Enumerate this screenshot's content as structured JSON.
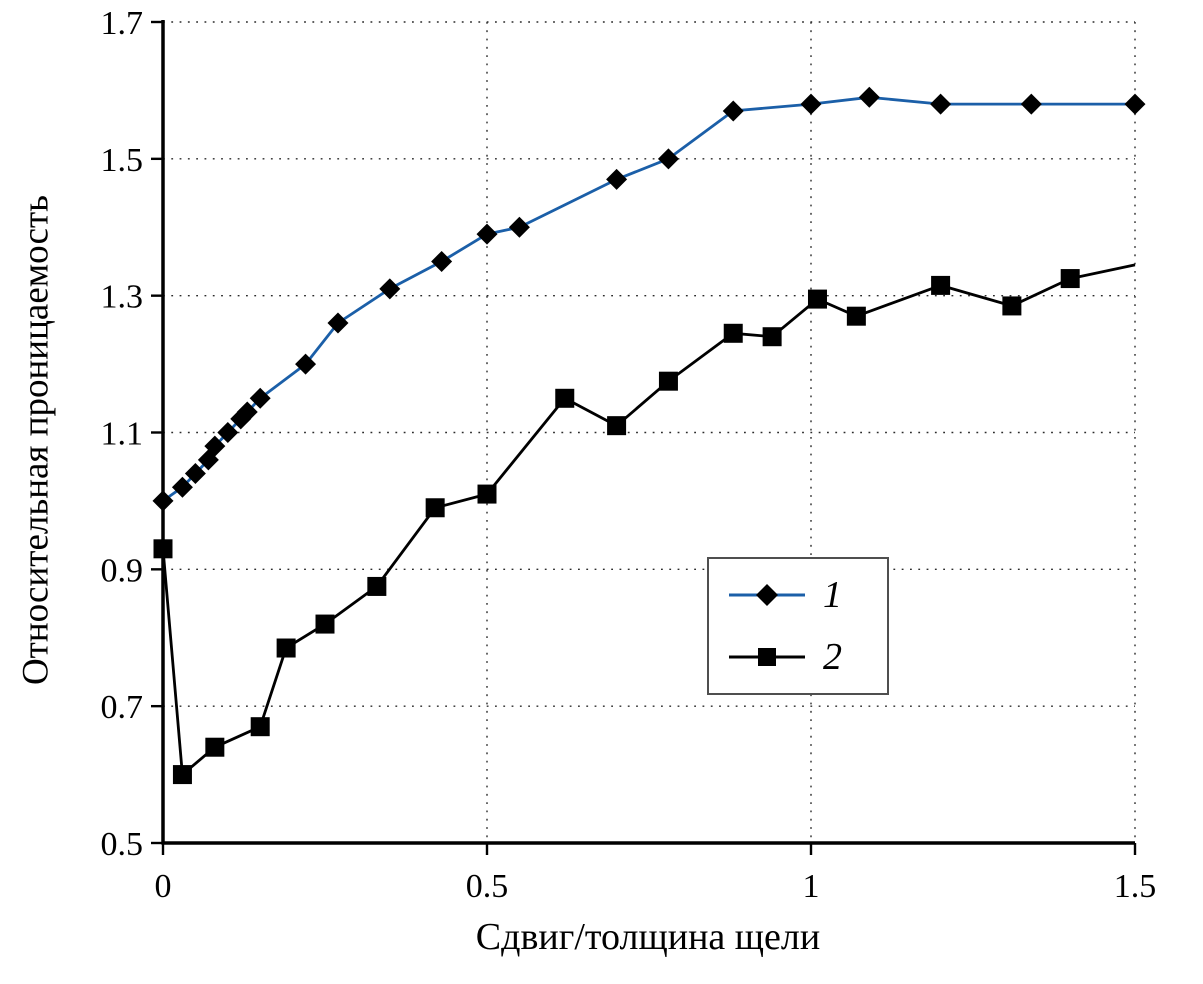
{
  "chart_data": {
    "type": "line",
    "title": "",
    "xlabel": "Сдвиг/толщина щели",
    "ylabel": "Относительная проницаемость",
    "xlim": [
      0,
      1.5
    ],
    "ylim": [
      0.5,
      1.7
    ],
    "xticks": [
      0,
      0.5,
      1,
      1.5
    ],
    "xtick_labels": [
      "0",
      "0.5",
      "1",
      "1.5"
    ],
    "yticks": [
      0.5,
      0.7,
      0.9,
      1.1,
      1.3,
      1.5,
      1.7
    ],
    "ytick_labels": [
      "0.5",
      "0.7",
      "0.9",
      "1.1",
      "1.3",
      "1.5",
      "1.7"
    ],
    "grid": "dotted",
    "legend_position": "inside-center-right",
    "series": [
      {
        "name": "series-1",
        "label": "1",
        "color": "#1b5fa8",
        "marker": "diamond",
        "marker_color": "#000000",
        "x": [
          0,
          0.03,
          0.05,
          0.07,
          0.08,
          0.1,
          0.12,
          0.13,
          0.15,
          0.22,
          0.27,
          0.35,
          0.43,
          0.5,
          0.55,
          0.7,
          0.78,
          0.88,
          1.0,
          1.09,
          1.2,
          1.34,
          1.5
        ],
        "y": [
          1.0,
          1.02,
          1.04,
          1.06,
          1.08,
          1.1,
          1.12,
          1.13,
          1.15,
          1.2,
          1.26,
          1.31,
          1.35,
          1.39,
          1.4,
          1.47,
          1.5,
          1.57,
          1.58,
          1.59,
          1.58,
          1.58,
          1.58
        ]
      },
      {
        "name": "series-2",
        "label": "2",
        "color": "#000000",
        "marker": "square",
        "marker_color": "#000000",
        "no_marker_last": true,
        "x": [
          0,
          0.03,
          0.08,
          0.15,
          0.19,
          0.25,
          0.33,
          0.42,
          0.5,
          0.62,
          0.7,
          0.78,
          0.88,
          0.94,
          1.01,
          1.07,
          1.2,
          1.31,
          1.4,
          1.5
        ],
        "y": [
          0.93,
          0.6,
          0.64,
          0.67,
          0.785,
          0.82,
          0.875,
          0.99,
          1.01,
          1.15,
          1.11,
          1.175,
          1.245,
          1.24,
          1.295,
          1.27,
          1.315,
          1.285,
          1.325,
          1.345
        ]
      }
    ]
  }
}
